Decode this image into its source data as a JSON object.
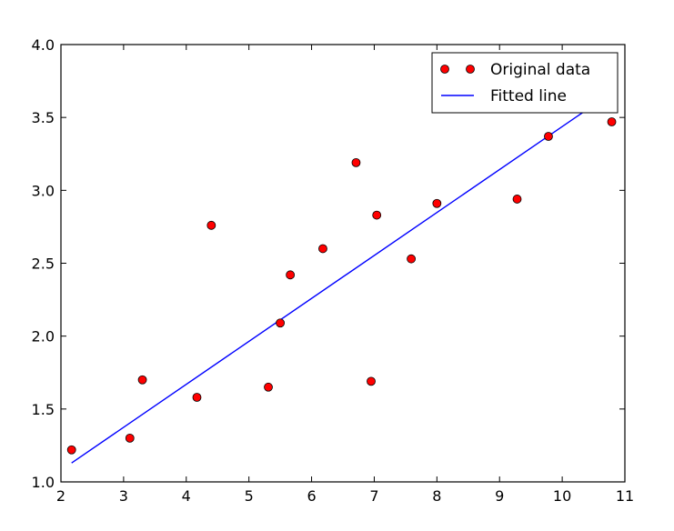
{
  "chart_data": {
    "type": "scatter",
    "xlim": [
      2,
      11
    ],
    "ylim": [
      1.0,
      4.0
    ],
    "x_ticks": [
      2,
      3,
      4,
      5,
      6,
      7,
      8,
      9,
      10,
      11
    ],
    "y_ticks": [
      1.0,
      1.5,
      2.0,
      2.5,
      3.0,
      3.5,
      4.0
    ],
    "x_tick_labels": [
      "2",
      "3",
      "4",
      "5",
      "6",
      "7",
      "8",
      "9",
      "10",
      "11"
    ],
    "y_tick_labels": [
      "1.0",
      "1.5",
      "2.0",
      "2.5",
      "3.0",
      "3.5",
      "4.0"
    ],
    "grid": false,
    "legend_position": "top-right",
    "series": [
      {
        "name": "Original data",
        "kind": "markers",
        "color": "#ff0000",
        "points": [
          {
            "x": 2.17,
            "y": 1.22
          },
          {
            "x": 3.1,
            "y": 1.3
          },
          {
            "x": 3.3,
            "y": 1.7
          },
          {
            "x": 4.17,
            "y": 1.58
          },
          {
            "x": 4.4,
            "y": 2.76
          },
          {
            "x": 5.31,
            "y": 1.65
          },
          {
            "x": 5.5,
            "y": 2.09
          },
          {
            "x": 5.66,
            "y": 2.42
          },
          {
            "x": 6.18,
            "y": 2.6
          },
          {
            "x": 6.71,
            "y": 3.19
          },
          {
            "x": 6.95,
            "y": 1.69
          },
          {
            "x": 7.04,
            "y": 2.83
          },
          {
            "x": 7.59,
            "y": 2.53
          },
          {
            "x": 8.0,
            "y": 2.91
          },
          {
            "x": 9.28,
            "y": 2.94
          },
          {
            "x": 9.78,
            "y": 3.37
          },
          {
            "x": 10.79,
            "y": 3.47
          }
        ]
      },
      {
        "name": "Fitted line",
        "kind": "line",
        "color": "#0000ff",
        "points": [
          {
            "x": 2.17,
            "y": 1.13
          },
          {
            "x": 10.79,
            "y": 3.67
          }
        ]
      }
    ]
  }
}
